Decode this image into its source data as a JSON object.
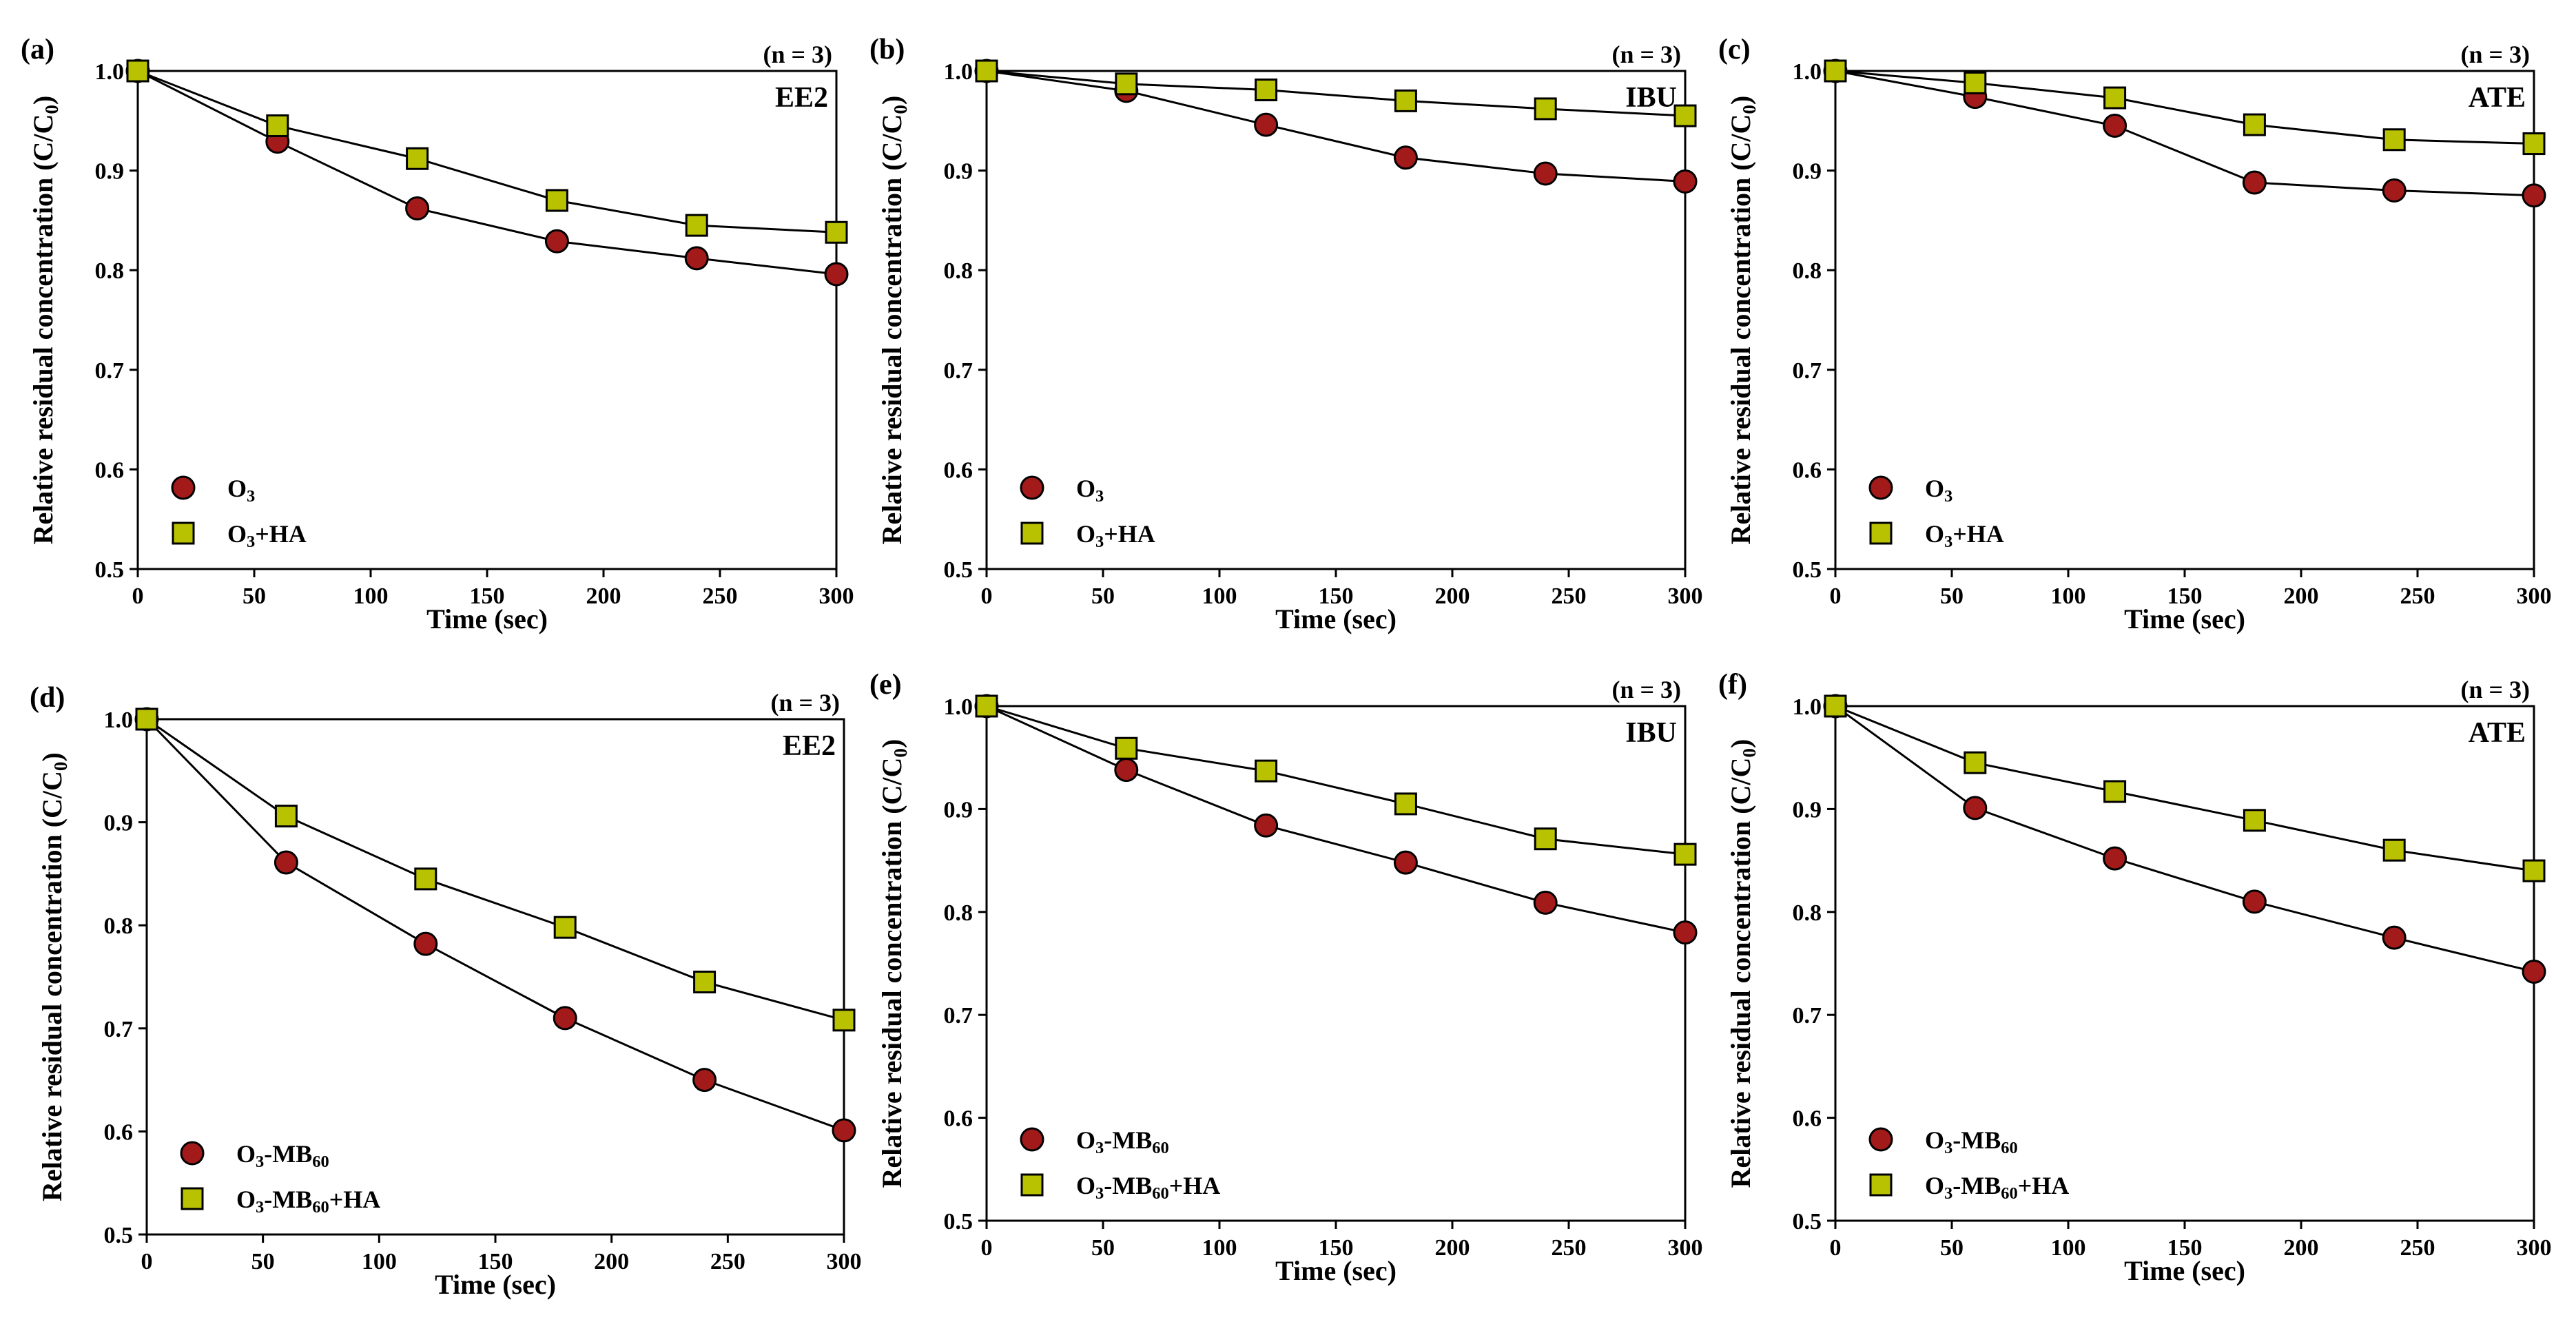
{
  "figure": {
    "x_label": "Time (sec)",
    "y_label": "Relative residual concentration (C/C",
    "y_label_sub": "0",
    "y_label_end": ")",
    "n_label": "(n = 3)",
    "colors": {
      "circle_fill": "#A31A1A",
      "square_fill": "#B9C200",
      "line": "#000000",
      "axis": "#000000"
    }
  },
  "chart_data": [
    {
      "panel": "(a)",
      "compound": "EE2",
      "type": "line",
      "xlim": [
        0,
        300
      ],
      "ylim": [
        0.5,
        1.0
      ],
      "x_ticks": [
        0,
        50,
        100,
        150,
        200,
        250,
        300
      ],
      "y_ticks": [
        0.5,
        0.6,
        0.7,
        0.8,
        0.9,
        1.0
      ],
      "series": [
        {
          "name": "O3",
          "legend": [
            "O",
            "3",
            ""
          ],
          "marker": "circle",
          "x": [
            0,
            60,
            120,
            180,
            240,
            300
          ],
          "y": [
            1.0,
            0.929,
            0.862,
            0.829,
            0.812,
            0.796
          ]
        },
        {
          "name": "O3+HA",
          "legend": [
            "O",
            "3",
            "+HA"
          ],
          "marker": "square",
          "x": [
            0,
            60,
            120,
            180,
            240,
            300
          ],
          "y": [
            1.0,
            0.945,
            0.912,
            0.87,
            0.845,
            0.838
          ]
        }
      ]
    },
    {
      "panel": "(b)",
      "compound": "IBU",
      "type": "line",
      "xlim": [
        0,
        300
      ],
      "ylim": [
        0.5,
        1.0
      ],
      "x_ticks": [
        0,
        50,
        100,
        150,
        200,
        250,
        300
      ],
      "y_ticks": [
        0.5,
        0.6,
        0.7,
        0.8,
        0.9,
        1.0
      ],
      "series": [
        {
          "name": "O3",
          "legend": [
            "O",
            "3",
            ""
          ],
          "marker": "circle",
          "x": [
            0,
            60,
            120,
            180,
            240,
            300
          ],
          "y": [
            1.0,
            0.98,
            0.946,
            0.913,
            0.897,
            0.889
          ]
        },
        {
          "name": "O3+HA",
          "legend": [
            "O",
            "3",
            "+HA"
          ],
          "marker": "square",
          "x": [
            0,
            60,
            120,
            180,
            240,
            300
          ],
          "y": [
            1.0,
            0.987,
            0.981,
            0.97,
            0.962,
            0.955
          ]
        }
      ]
    },
    {
      "panel": "(c)",
      "compound": "ATE",
      "type": "line",
      "xlim": [
        0,
        300
      ],
      "ylim": [
        0.5,
        1.0
      ],
      "x_ticks": [
        0,
        50,
        100,
        150,
        200,
        250,
        300
      ],
      "y_ticks": [
        0.5,
        0.6,
        0.7,
        0.8,
        0.9,
        1.0
      ],
      "series": [
        {
          "name": "O3",
          "legend": [
            "O",
            "3",
            ""
          ],
          "marker": "circle",
          "x": [
            0,
            60,
            120,
            180,
            240,
            300
          ],
          "y": [
            1.0,
            0.974,
            0.945,
            0.888,
            0.88,
            0.875
          ]
        },
        {
          "name": "O3+HA",
          "legend": [
            "O",
            "3",
            "+HA"
          ],
          "marker": "square",
          "x": [
            0,
            60,
            120,
            180,
            240,
            300
          ],
          "y": [
            1.0,
            0.988,
            0.973,
            0.946,
            0.931,
            0.927
          ]
        }
      ]
    },
    {
      "panel": "(d)",
      "compound": "EE2",
      "type": "line",
      "xlim": [
        0,
        300
      ],
      "ylim": [
        0.5,
        1.0
      ],
      "x_ticks": [
        0,
        50,
        100,
        150,
        200,
        250,
        300
      ],
      "y_ticks": [
        0.5,
        0.6,
        0.7,
        0.8,
        0.9,
        1.0
      ],
      "series": [
        {
          "name": "O3-MB60",
          "legend": [
            "O",
            "3",
            "-MB",
            "60",
            ""
          ],
          "marker": "circle",
          "x": [
            0,
            60,
            120,
            180,
            240,
            300
          ],
          "y": [
            1.0,
            0.861,
            0.782,
            0.71,
            0.65,
            0.601
          ]
        },
        {
          "name": "O3-MB60+HA",
          "legend": [
            "O",
            "3",
            "-MB",
            "60",
            "+HA"
          ],
          "marker": "square",
          "x": [
            0,
            60,
            120,
            180,
            240,
            300
          ],
          "y": [
            1.0,
            0.906,
            0.845,
            0.798,
            0.745,
            0.708
          ]
        }
      ]
    },
    {
      "panel": "(e)",
      "compound": "IBU",
      "type": "line",
      "xlim": [
        0,
        300
      ],
      "ylim": [
        0.5,
        1.0
      ],
      "x_ticks": [
        0,
        50,
        100,
        150,
        200,
        250,
        300
      ],
      "y_ticks": [
        0.5,
        0.6,
        0.7,
        0.8,
        0.9,
        1.0
      ],
      "series": [
        {
          "name": "O3-MB60",
          "legend": [
            "O",
            "3",
            "-MB",
            "60",
            ""
          ],
          "marker": "circle",
          "x": [
            0,
            60,
            120,
            180,
            240,
            300
          ],
          "y": [
            1.0,
            0.938,
            0.884,
            0.848,
            0.809,
            0.78
          ]
        },
        {
          "name": "O3-MB60+HA",
          "legend": [
            "O",
            "3",
            "-MB",
            "60",
            "+HA"
          ],
          "marker": "square",
          "x": [
            0,
            60,
            120,
            180,
            240,
            300
          ],
          "y": [
            1.0,
            0.959,
            0.937,
            0.905,
            0.871,
            0.856
          ]
        }
      ]
    },
    {
      "panel": "(f)",
      "compound": "ATE",
      "type": "line",
      "xlim": [
        0,
        300
      ],
      "ylim": [
        0.5,
        1.0
      ],
      "x_ticks": [
        0,
        50,
        100,
        150,
        200,
        250,
        300
      ],
      "y_ticks": [
        0.5,
        0.6,
        0.7,
        0.8,
        0.9,
        1.0
      ],
      "series": [
        {
          "name": "O3-MB60",
          "legend": [
            "O",
            "3",
            "-MB",
            "60",
            ""
          ],
          "marker": "circle",
          "x": [
            0,
            60,
            120,
            180,
            240,
            300
          ],
          "y": [
            1.0,
            0.901,
            0.852,
            0.81,
            0.775,
            0.742
          ]
        },
        {
          "name": "O3-MB60+HA",
          "legend": [
            "O",
            "3",
            "-MB",
            "60",
            "+HA"
          ],
          "marker": "square",
          "x": [
            0,
            60,
            120,
            180,
            240,
            300
          ],
          "y": [
            1.0,
            0.945,
            0.917,
            0.889,
            0.86,
            0.84
          ]
        }
      ]
    }
  ]
}
